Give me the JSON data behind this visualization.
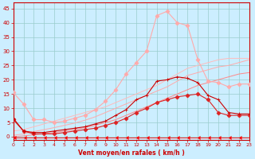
{
  "xlabel": "Vent moyen/en rafales ( km/h )",
  "xlim": [
    0,
    23
  ],
  "ylim": [
    -1,
    47
  ],
  "yticks": [
    0,
    5,
    10,
    15,
    20,
    25,
    30,
    35,
    40,
    45
  ],
  "xticks": [
    0,
    1,
    2,
    3,
    4,
    5,
    6,
    7,
    8,
    9,
    10,
    11,
    12,
    13,
    14,
    15,
    16,
    17,
    18,
    19,
    20,
    21,
    22,
    23
  ],
  "bg_color": "#cceeff",
  "grid_color": "#99cccc",
  "lines": [
    {
      "x": [
        0,
        1,
        2,
        3,
        4,
        5,
        6,
        7,
        8,
        9,
        10,
        11,
        12,
        13,
        14,
        15,
        16,
        17,
        18,
        19,
        20,
        21,
        22,
        23
      ],
      "y": [
        -0.3,
        -0.3,
        -0.3,
        -0.3,
        -0.3,
        -0.3,
        -0.3,
        -0.3,
        -0.3,
        -0.3,
        -0.3,
        -0.3,
        -0.3,
        -0.3,
        -0.3,
        -0.3,
        -0.3,
        -0.3,
        -0.3,
        -0.3,
        -0.3,
        -0.3,
        -0.3,
        -0.3
      ],
      "color": "#ff0000",
      "lw": 0.6,
      "marker": 4,
      "ms": 3
    },
    {
      "x": [
        0,
        1,
        2,
        3,
        4,
        5,
        6,
        7,
        8,
        9,
        10,
        11,
        12,
        13,
        14,
        15,
        16,
        17,
        18,
        19,
        20,
        21,
        22,
        23
      ],
      "y": [
        6.0,
        2.0,
        1.0,
        1.0,
        1.0,
        1.5,
        2.0,
        2.5,
        3.0,
        4.0,
        5.0,
        6.5,
        8.5,
        10.0,
        12.0,
        13.0,
        14.0,
        14.5,
        15.0,
        13.0,
        8.5,
        7.5,
        7.5,
        7.5
      ],
      "color": "#dd2222",
      "lw": 0.8,
      "marker": "D",
      "ms": 2.5
    },
    {
      "x": [
        0,
        1,
        2,
        3,
        4,
        5,
        6,
        7,
        8,
        9,
        10,
        11,
        12,
        13,
        14,
        15,
        16,
        17,
        18,
        19,
        20,
        21,
        22,
        23
      ],
      "y": [
        6.5,
        2.0,
        1.5,
        1.5,
        2.0,
        2.5,
        3.0,
        3.5,
        4.5,
        5.5,
        7.5,
        9.5,
        13.0,
        14.5,
        19.5,
        20.0,
        21.0,
        20.5,
        19.0,
        14.5,
        13.0,
        8.5,
        8.0,
        8.0
      ],
      "color": "#cc0000",
      "lw": 0.8,
      "marker": "+",
      "ms": 3.5
    },
    {
      "x": [
        0,
        1,
        2,
        3,
        4,
        5,
        6,
        7,
        8,
        9,
        10,
        11,
        12,
        13,
        14,
        15,
        16,
        17,
        18,
        19,
        20,
        21,
        22,
        23
      ],
      "y": [
        0.0,
        0.3,
        0.7,
        1.1,
        1.5,
        2.0,
        2.5,
        3.2,
        4.0,
        5.0,
        6.0,
        7.5,
        9.0,
        10.5,
        12.0,
        13.5,
        15.0,
        16.5,
        18.0,
        19.0,
        20.0,
        21.0,
        22.0,
        22.5
      ],
      "color": "#ff8888",
      "lw": 0.7,
      "marker": null,
      "ms": 0
    },
    {
      "x": [
        0,
        1,
        2,
        3,
        4,
        5,
        6,
        7,
        8,
        9,
        10,
        11,
        12,
        13,
        14,
        15,
        16,
        17,
        18,
        19,
        20,
        21,
        22,
        23
      ],
      "y": [
        0.5,
        1.0,
        1.8,
        2.5,
        3.2,
        4.0,
        4.8,
        5.8,
        7.0,
        8.5,
        10.0,
        11.5,
        13.0,
        14.5,
        16.0,
        17.5,
        19.5,
        21.5,
        22.5,
        23.5,
        24.5,
        25.0,
        26.0,
        27.0
      ],
      "color": "#ffaaaa",
      "lw": 0.7,
      "marker": null,
      "ms": 0
    },
    {
      "x": [
        0,
        1,
        2,
        3,
        4,
        5,
        6,
        7,
        8,
        9,
        10,
        11,
        12,
        13,
        14,
        15,
        16,
        17,
        18,
        19,
        20,
        21,
        22,
        23
      ],
      "y": [
        2.0,
        2.5,
        3.5,
        4.5,
        5.5,
        6.5,
        7.5,
        8.5,
        9.5,
        10.5,
        12.0,
        13.5,
        15.0,
        16.5,
        18.0,
        20.0,
        22.0,
        24.0,
        25.0,
        26.0,
        27.0,
        27.5,
        27.5,
        27.5
      ],
      "color": "#ffbbbb",
      "lw": 0.7,
      "marker": null,
      "ms": 0
    },
    {
      "x": [
        0,
        1,
        2,
        3,
        4,
        5,
        6,
        7,
        8,
        9,
        10,
        11,
        12,
        13,
        14,
        15,
        16,
        17,
        18,
        19,
        20,
        21,
        22,
        23
      ],
      "y": [
        15.5,
        11.5,
        6.0,
        6.0,
        5.0,
        5.5,
        6.5,
        7.5,
        9.5,
        12.5,
        16.5,
        22.0,
        26.0,
        30.0,
        42.5,
        44.0,
        40.0,
        39.0,
        27.0,
        19.5,
        19.0,
        17.5,
        18.5,
        18.5
      ],
      "color": "#ffaaaa",
      "lw": 0.8,
      "marker": "D",
      "ms": 2.5
    }
  ]
}
